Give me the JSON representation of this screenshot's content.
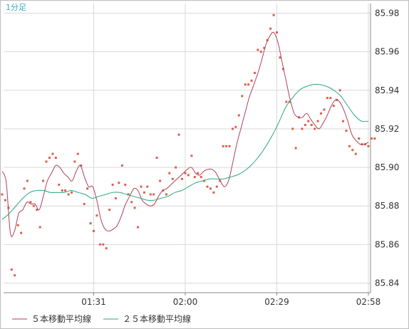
{
  "chart_data": {
    "type": "line",
    "timeframe": "1分足",
    "x_tick_labels": [
      "01:31",
      "02:00",
      "02:29",
      "02:58"
    ],
    "x_tick_index": [
      29,
      58,
      87,
      116
    ],
    "y_tick_labels": [
      "85.98",
      "85.96",
      "85.94",
      "85.92",
      "85.90",
      "85.88",
      "85.86",
      "85.84"
    ],
    "ylim": [
      85.835,
      85.985
    ],
    "grid": true,
    "legend_position": "bottom-left",
    "colors": {
      "ma5": "#b0405a",
      "ma25": "#2aa67e",
      "price": "#d9614a",
      "grid": "#d9d9d9"
    },
    "price": [
      85.886,
      85.883,
      85.879,
      85.847,
      85.844,
      85.87,
      85.866,
      85.889,
      85.893,
      85.882,
      85.88,
      85.878,
      85.869,
      85.893,
      85.903,
      85.905,
      85.907,
      85.905,
      85.891,
      85.888,
      85.888,
      85.886,
      85.887,
      85.903,
      85.907,
      85.901,
      85.881,
      85.889,
      85.871,
      85.867,
      85.875,
      85.86,
      85.86,
      85.858,
      85.878,
      85.891,
      85.884,
      85.892,
      85.901,
      85.891,
      85.886,
      85.882,
      85.879,
      85.869,
      85.89,
      85.887,
      85.89,
      85.886,
      85.886,
      85.905,
      85.893,
      85.888,
      85.886,
      85.897,
      85.894,
      85.9,
      85.917,
      85.894,
      85.897,
      85.896,
      85.906,
      85.895,
      85.897,
      85.895,
      85.893,
      85.89,
      85.889,
      85.887,
      85.89,
      85.893,
      85.911,
      85.911,
      85.911,
      85.92,
      85.921,
      85.927,
      85.937,
      85.943,
      85.943,
      85.945,
      85.949,
      85.961,
      85.96,
      85.962,
      85.966,
      85.972,
      85.979,
      85.97,
      85.957,
      85.951,
      85.934,
      85.934,
      85.92,
      85.91,
      85.926,
      85.92,
      85.922,
      85.924,
      85.922,
      85.92,
      85.924,
      85.928,
      85.93,
      85.936,
      85.936,
      85.932,
      85.935,
      85.94,
      85.924,
      85.919,
      85.911,
      85.909,
      85.907,
      85.915,
      85.912,
      85.912,
      85.911,
      85.915,
      85.915
    ],
    "series": [
      {
        "name": "５本移動平均線",
        "values": [
          85.898,
          85.892,
          85.866,
          85.867,
          85.876,
          85.878,
          85.882,
          85.881,
          85.881,
          85.878,
          85.885,
          85.893,
          85.897,
          85.901,
          85.9,
          85.897,
          85.895,
          85.893,
          85.898,
          85.901,
          85.895,
          85.89,
          85.89,
          85.883,
          85.873,
          85.868,
          85.867,
          85.868,
          85.87,
          85.875,
          85.881,
          85.885,
          85.889,
          85.888,
          85.883,
          85.881,
          85.88,
          85.881,
          85.885,
          85.888,
          85.889,
          85.891,
          85.893,
          85.895,
          85.897,
          85.899,
          85.9,
          85.897,
          85.896,
          85.898,
          85.899,
          85.899,
          85.897,
          85.893,
          85.89,
          85.893,
          85.902,
          85.912,
          85.92,
          85.928,
          85.936,
          85.942,
          85.948,
          85.955,
          85.963,
          85.968,
          85.97,
          85.965,
          85.955,
          85.945,
          85.935,
          85.928,
          85.926,
          85.926,
          85.928,
          85.925,
          85.922,
          85.92,
          85.923,
          85.927,
          85.932,
          85.935,
          85.934,
          85.93,
          85.924,
          85.917,
          85.914,
          85.912,
          85.912,
          85.913
        ]
      },
      {
        "name": "２５本移動平均線",
        "values": [
          85.873,
          85.876,
          85.88,
          85.884,
          85.887,
          85.888,
          85.888,
          85.887,
          85.887,
          85.887,
          85.888,
          85.887,
          85.886,
          85.884,
          85.885,
          85.886,
          85.887,
          85.887,
          85.886,
          85.885,
          85.884,
          85.883,
          85.883,
          85.884,
          85.885,
          85.887,
          85.888,
          85.89,
          85.892,
          85.893,
          85.894,
          85.894,
          85.894,
          85.895,
          85.896,
          85.898,
          85.901,
          85.905,
          85.91,
          85.916,
          85.923,
          85.931,
          85.936,
          85.94,
          85.942,
          85.943,
          85.943,
          85.942,
          85.94,
          85.937,
          85.932,
          85.927,
          85.924,
          85.924
        ]
      }
    ],
    "legend": [
      "５本移動平均線",
      "２５本移動平均線"
    ]
  }
}
